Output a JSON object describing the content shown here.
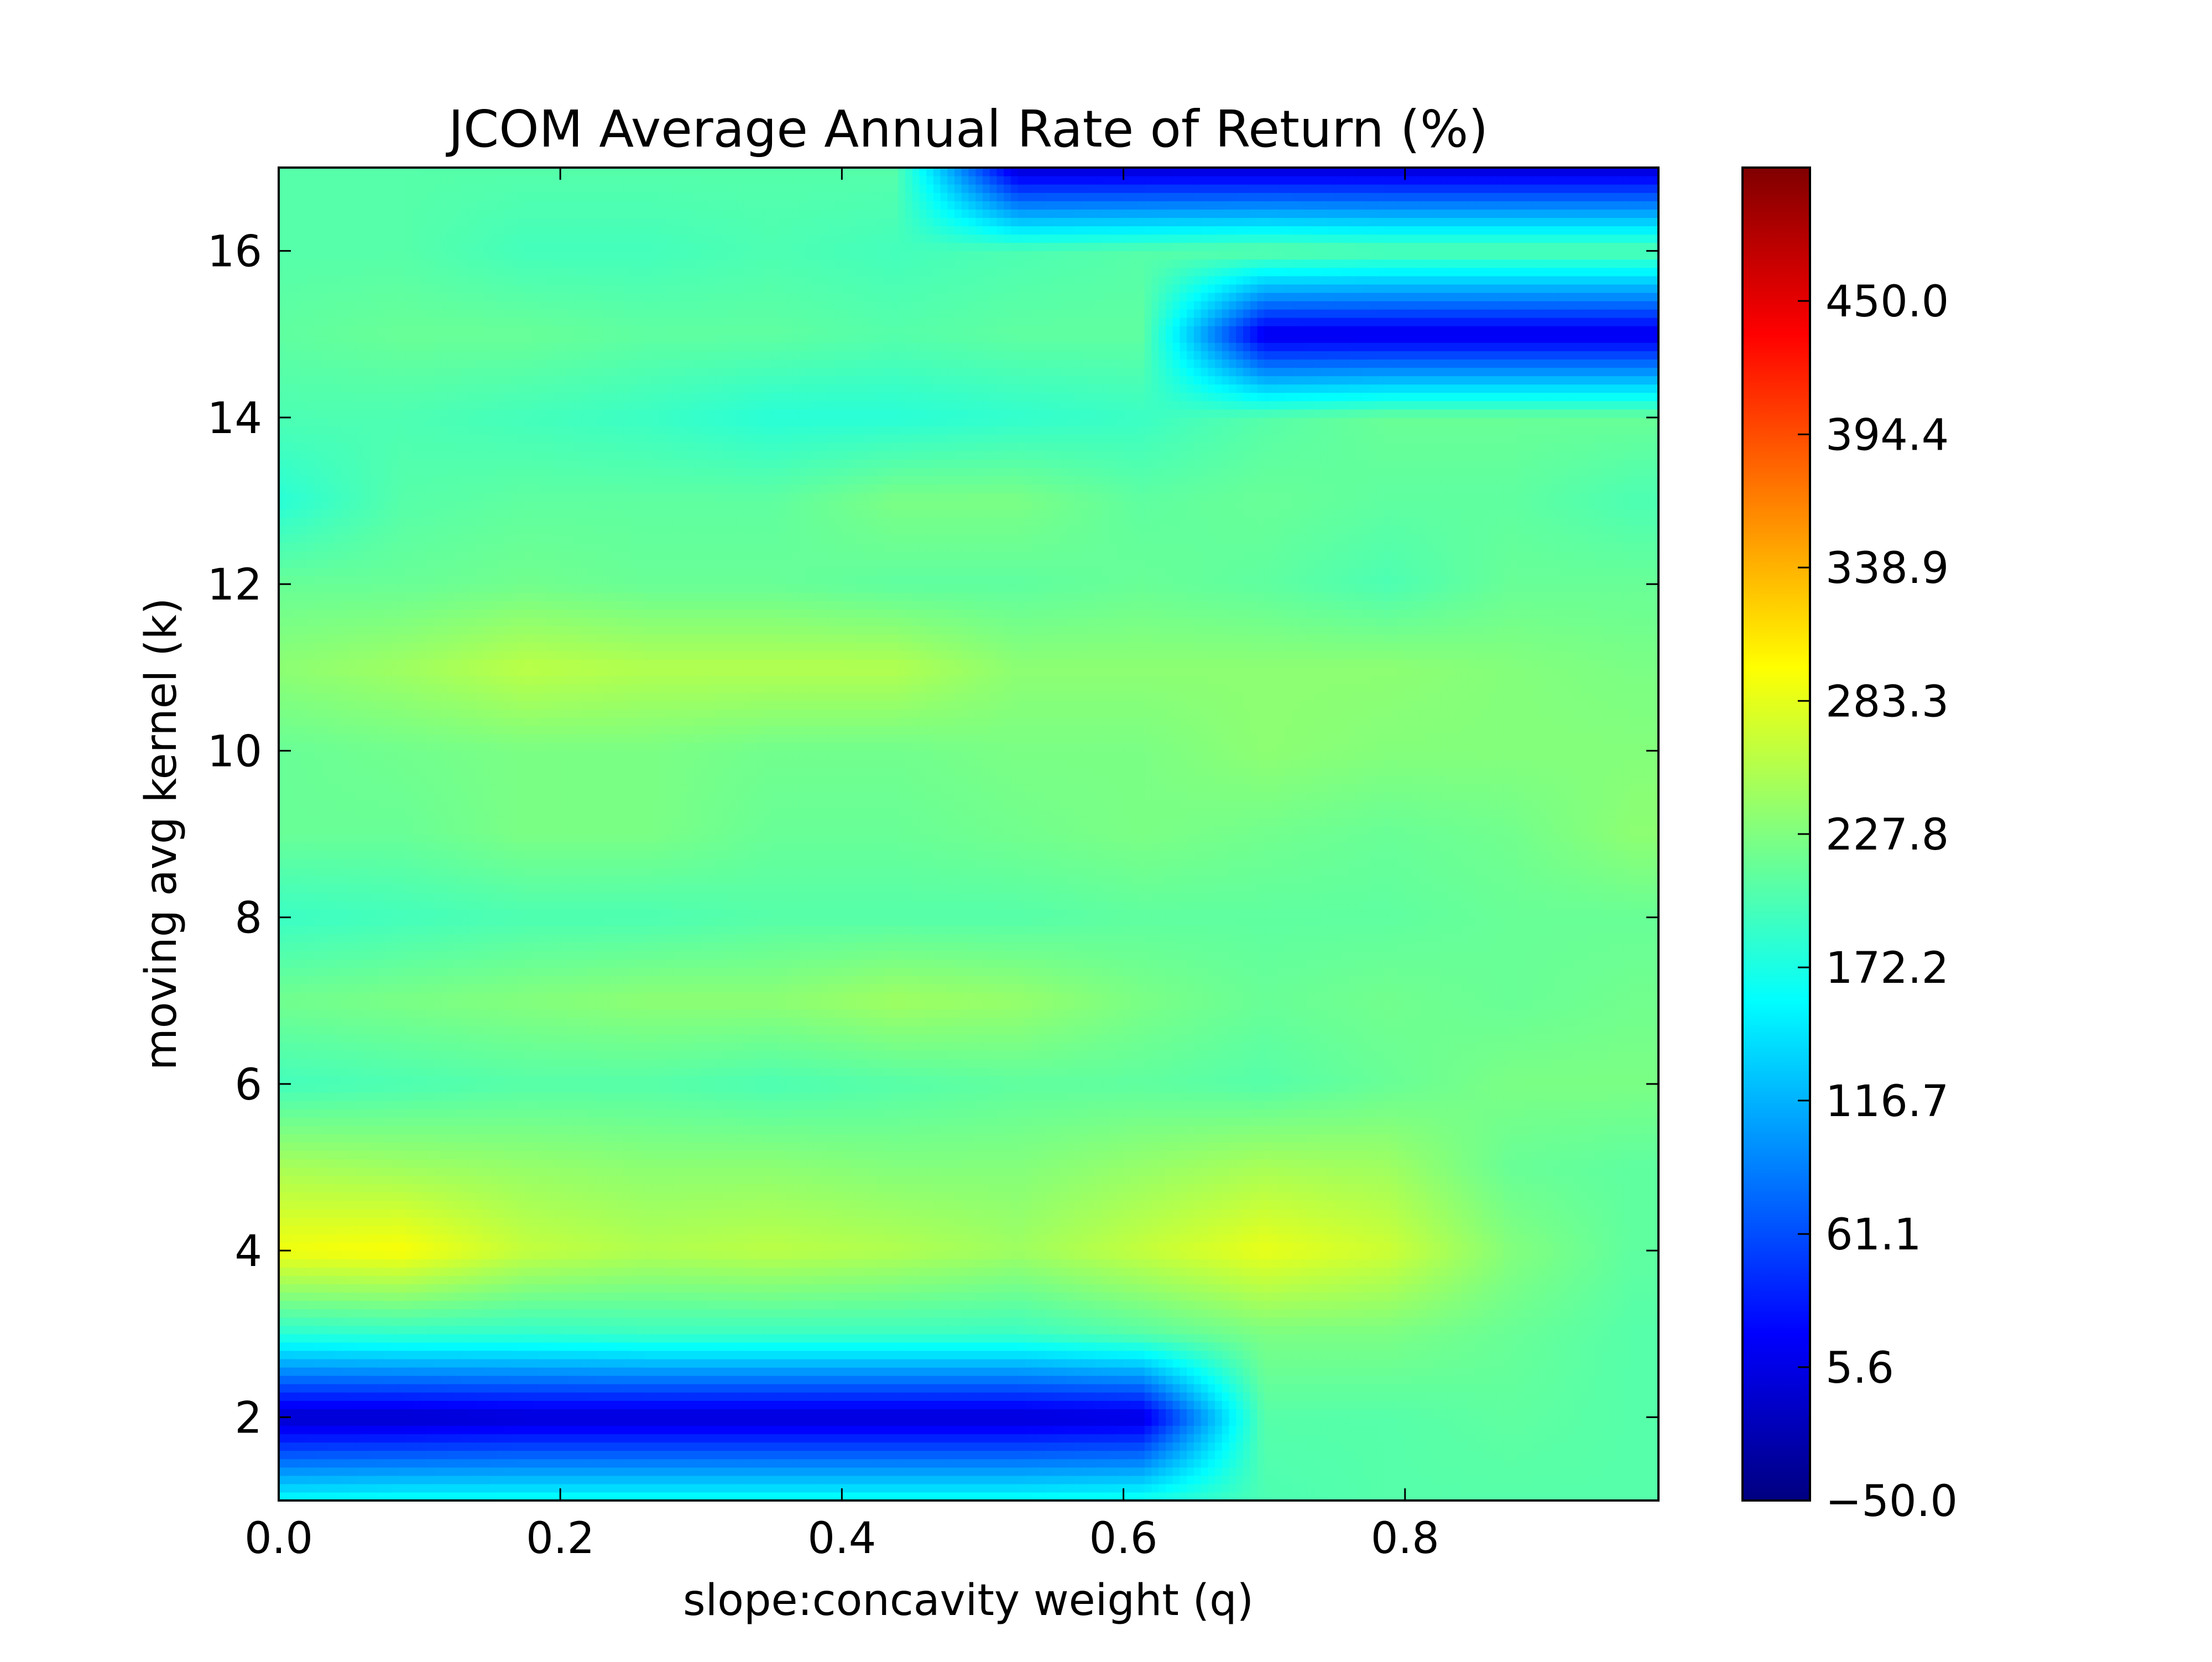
{
  "chart_data": {
    "type": "heatmap",
    "title": "JCOM Average Annual Rate of Return (%)",
    "xlabel": "slope:concavity weight (q)",
    "ylabel": "moving avg kernel (k)",
    "xlim": [
      0.0,
      0.98
    ],
    "ylim": [
      1,
      17
    ],
    "x_ticks": [
      {
        "value": 0.0,
        "label": "0.0"
      },
      {
        "value": 0.2,
        "label": "0.2"
      },
      {
        "value": 0.4,
        "label": "0.4"
      },
      {
        "value": 0.6,
        "label": "0.6"
      },
      {
        "value": 0.8,
        "label": "0.8"
      }
    ],
    "y_ticks": [
      {
        "value": 2,
        "label": "2"
      },
      {
        "value": 4,
        "label": "4"
      },
      {
        "value": 6,
        "label": "6"
      },
      {
        "value": 8,
        "label": "8"
      },
      {
        "value": 10,
        "label": "10"
      },
      {
        "value": 12,
        "label": "12"
      },
      {
        "value": 14,
        "label": "14"
      },
      {
        "value": 16,
        "label": "16"
      }
    ],
    "colorbar": {
      "colormap": "jet",
      "vmin": -50.0,
      "vmax": 505.6,
      "ticks": [
        {
          "value": -50.0,
          "label": "−50.0"
        },
        {
          "value": 5.6,
          "label": "5.6"
        },
        {
          "value": 61.1,
          "label": "61.1"
        },
        {
          "value": 116.7,
          "label": "116.7"
        },
        {
          "value": 172.2,
          "label": "172.2"
        },
        {
          "value": 227.8,
          "label": "227.8"
        },
        {
          "value": 283.3,
          "label": "283.3"
        },
        {
          "value": 338.9,
          "label": "338.9"
        },
        {
          "value": 394.4,
          "label": "394.4"
        },
        {
          "value": 450.0,
          "label": "450.0"
        }
      ]
    },
    "grid": false,
    "q_values": [
      0.0,
      0.0875,
      0.175,
      0.2625,
      0.35,
      0.4375,
      0.525,
      0.6125,
      0.7,
      0.7875,
      0.875,
      0.9625
    ],
    "k_values": [
      1,
      2,
      3,
      4,
      5,
      6,
      7,
      8,
      9,
      10,
      11,
      12,
      13,
      14,
      15,
      16,
      17
    ],
    "values": [
      [
        160,
        165,
        165,
        165,
        165,
        165,
        165,
        170,
        200,
        205,
        205,
        205
      ],
      [
        -10,
        -10,
        -5,
        -5,
        -5,
        -5,
        -5,
        0,
        205,
        205,
        210,
        205
      ],
      [
        180,
        185,
        185,
        190,
        190,
        190,
        190,
        205,
        225,
        225,
        215,
        205
      ],
      [
        290,
        295,
        265,
        255,
        260,
        255,
        245,
        265,
        285,
        270,
        230,
        210
      ],
      [
        250,
        245,
        240,
        235,
        235,
        230,
        230,
        240,
        250,
        245,
        215,
        210
      ],
      [
        195,
        200,
        205,
        205,
        200,
        205,
        210,
        210,
        205,
        215,
        225,
        225
      ],
      [
        220,
        225,
        230,
        235,
        235,
        245,
        240,
        225,
        215,
        220,
        215,
        220
      ],
      [
        190,
        195,
        200,
        200,
        205,
        205,
        205,
        210,
        210,
        210,
        215,
        215
      ],
      [
        215,
        215,
        225,
        225,
        215,
        215,
        220,
        225,
        220,
        215,
        220,
        235
      ],
      [
        215,
        220,
        225,
        225,
        220,
        220,
        225,
        225,
        235,
        230,
        230,
        230
      ],
      [
        235,
        245,
        260,
        255,
        255,
        255,
        235,
        235,
        235,
        235,
        230,
        225
      ],
      [
        215,
        215,
        220,
        215,
        215,
        210,
        210,
        215,
        210,
        200,
        215,
        215
      ],
      [
        180,
        205,
        210,
        210,
        210,
        225,
        225,
        210,
        215,
        210,
        210,
        200
      ],
      [
        200,
        200,
        195,
        190,
        180,
        180,
        185,
        190,
        205,
        215,
        215,
        215
      ],
      [
        210,
        215,
        215,
        210,
        210,
        205,
        210,
        210,
        5,
        5,
        5,
        5
      ],
      [
        205,
        205,
        195,
        195,
        200,
        195,
        200,
        205,
        210,
        205,
        205,
        205
      ],
      [
        205,
        205,
        205,
        205,
        205,
        205,
        -5,
        -5,
        -5,
        -5,
        -5,
        -5
      ]
    ]
  }
}
